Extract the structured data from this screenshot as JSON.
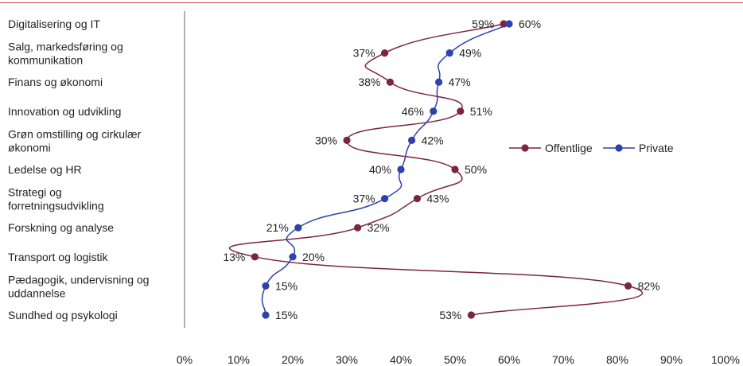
{
  "chart_data": {
    "type": "line",
    "orientation": "horizontal",
    "categories": [
      [
        "Digitalisering og IT"
      ],
      [
        "Salg, markedsføring og",
        "kommunikation"
      ],
      [
        "Finans og økonomi"
      ],
      [
        "Innovation og udvikling"
      ],
      [
        "Grøn omstilling og cirkulær",
        "økonomi"
      ],
      [
        "Ledelse og HR"
      ],
      [
        "Strategi og",
        "forretningsudvikling"
      ],
      [
        "Forskning og analyse"
      ],
      [
        "Transport og logistik"
      ],
      [
        "Pædagogik, undervisning og",
        "uddannelse"
      ],
      [
        "Sundhed og psykologi"
      ]
    ],
    "series": [
      {
        "name": "Offentlige",
        "color": "#7b2541",
        "values": [
          59,
          37,
          38,
          51,
          30,
          50,
          43,
          32,
          13,
          82,
          53
        ],
        "value_labels": [
          "59%",
          "37%",
          "38%",
          "51%",
          "30%",
          "50%",
          "43%",
          "32%",
          "13%",
          "82%",
          "53%"
        ]
      },
      {
        "name": "Private",
        "color": "#2e41ad",
        "values": [
          60,
          49,
          47,
          46,
          42,
          40,
          37,
          21,
          20,
          15,
          15
        ],
        "value_labels": [
          "60%",
          "49%",
          "47%",
          "46%",
          "42%",
          "40%",
          "37%",
          "21%",
          "20%",
          "15%",
          "15%"
        ]
      }
    ],
    "x_ticks": [
      "0%",
      "10%",
      "20%",
      "30%",
      "40%",
      "50%",
      "60%",
      "70%",
      "80%",
      "90%",
      "100%"
    ],
    "xlim": [
      0,
      100
    ],
    "grid": false,
    "legend": "right"
  }
}
